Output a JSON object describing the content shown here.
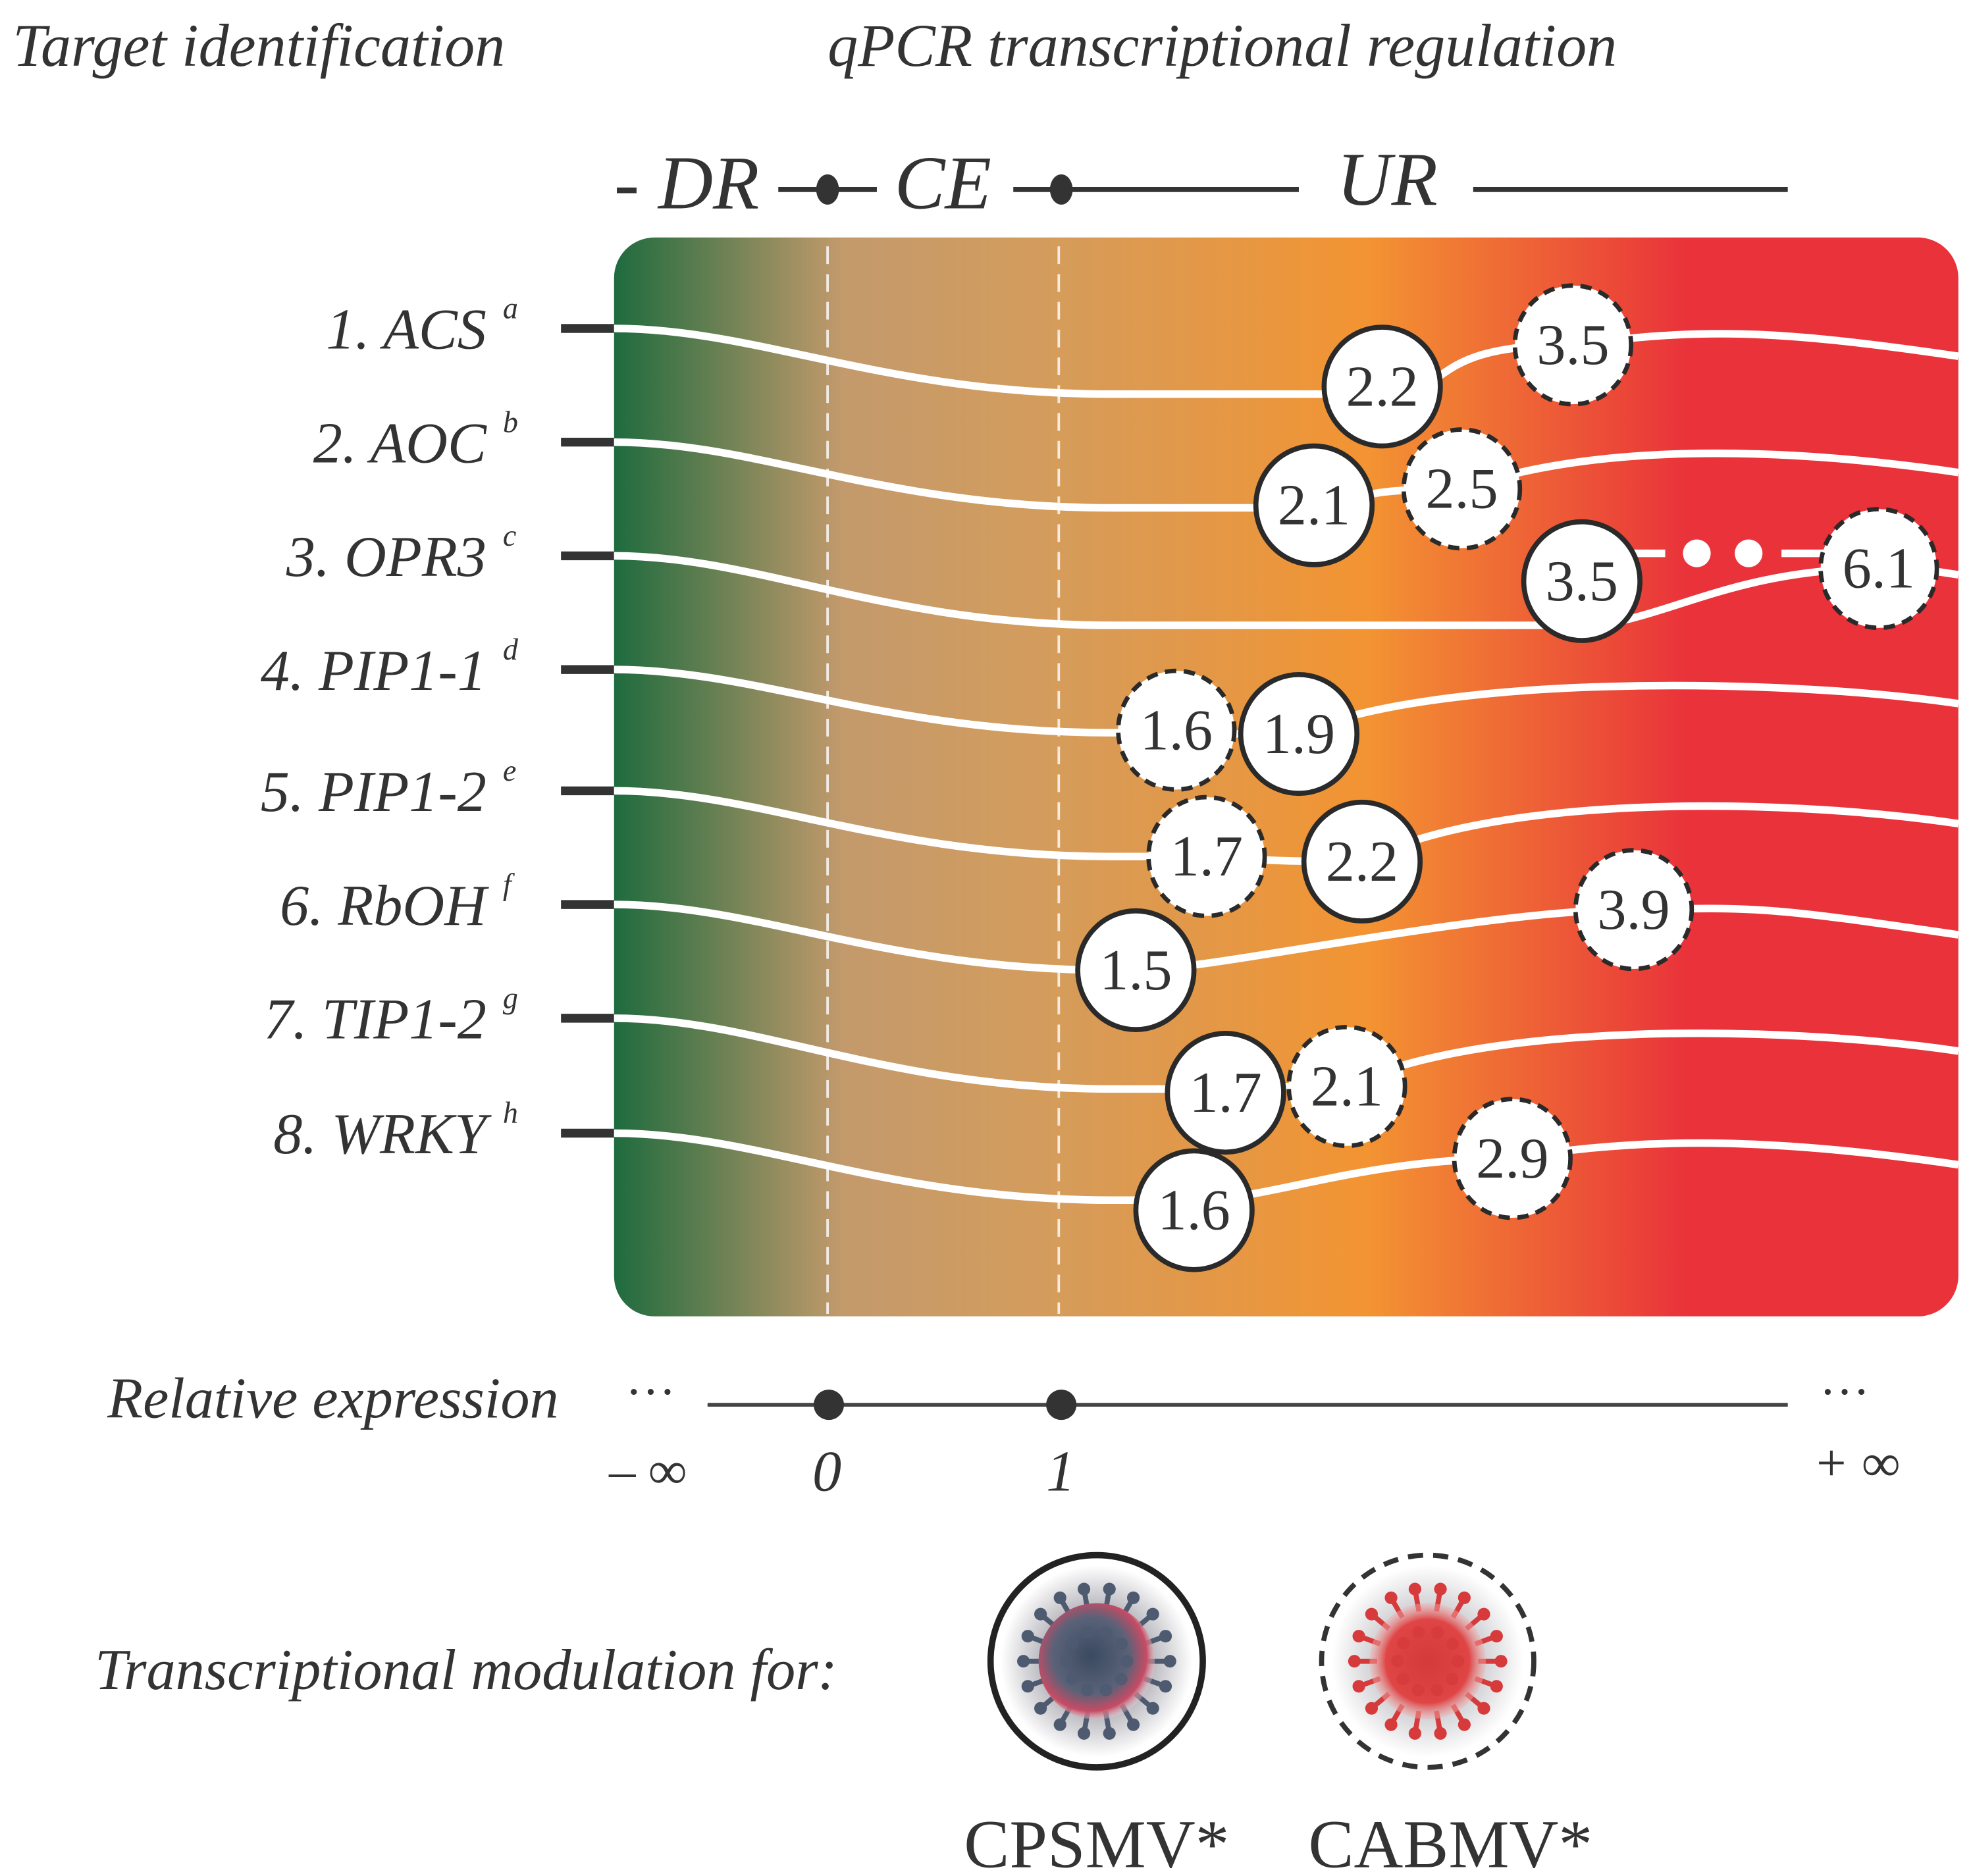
{
  "headers": {
    "left": "Target identification",
    "right": "qPCR transcriptional regulation"
  },
  "scale_top": {
    "dr": "- DR",
    "ce": "CE",
    "ur": "UR"
  },
  "genes": [
    {
      "label": "1. ACS",
      "sup": "a",
      "cpsmv": "2.2",
      "cabmv": "3.5"
    },
    {
      "label": "2. AOC",
      "sup": "b",
      "cpsmv": "2.1",
      "cabmv": "2.5"
    },
    {
      "label": "3. OPR3",
      "sup": "c",
      "cpsmv": "3.5",
      "cabmv": "6.1"
    },
    {
      "label": "4. PIP1-1",
      "sup": "d",
      "cpsmv": "1.9",
      "cabmv": "1.6"
    },
    {
      "label": "5. PIP1-2",
      "sup": "e",
      "cpsmv": "2.2",
      "cabmv": "1.7"
    },
    {
      "label": "6. RbOH",
      "sup": "f",
      "cpsmv": "1.5",
      "cabmv": "3.9"
    },
    {
      "label": "7. TIP1-2",
      "sup": "g",
      "cpsmv": "1.7",
      "cabmv": "2.1"
    },
    {
      "label": "8. WRKY",
      "sup": "h",
      "cpsmv": "1.6",
      "cabmv": "2.9"
    }
  ],
  "axis": {
    "title": "Relative expression",
    "ellipsis": "···",
    "ticks": [
      "– ∞",
      "0",
      "1",
      "+ ∞"
    ]
  },
  "legend": {
    "title": "Transcriptional modulation for:",
    "items": [
      {
        "name": "CPSMV*",
        "style": "solid"
      },
      {
        "name": "CABMV*",
        "style": "dashed"
      }
    ]
  },
  "colors": {
    "green": "#1e6b3e",
    "tan": "#c79a6c",
    "orange": "#f39432",
    "red": "#e9323a"
  }
}
